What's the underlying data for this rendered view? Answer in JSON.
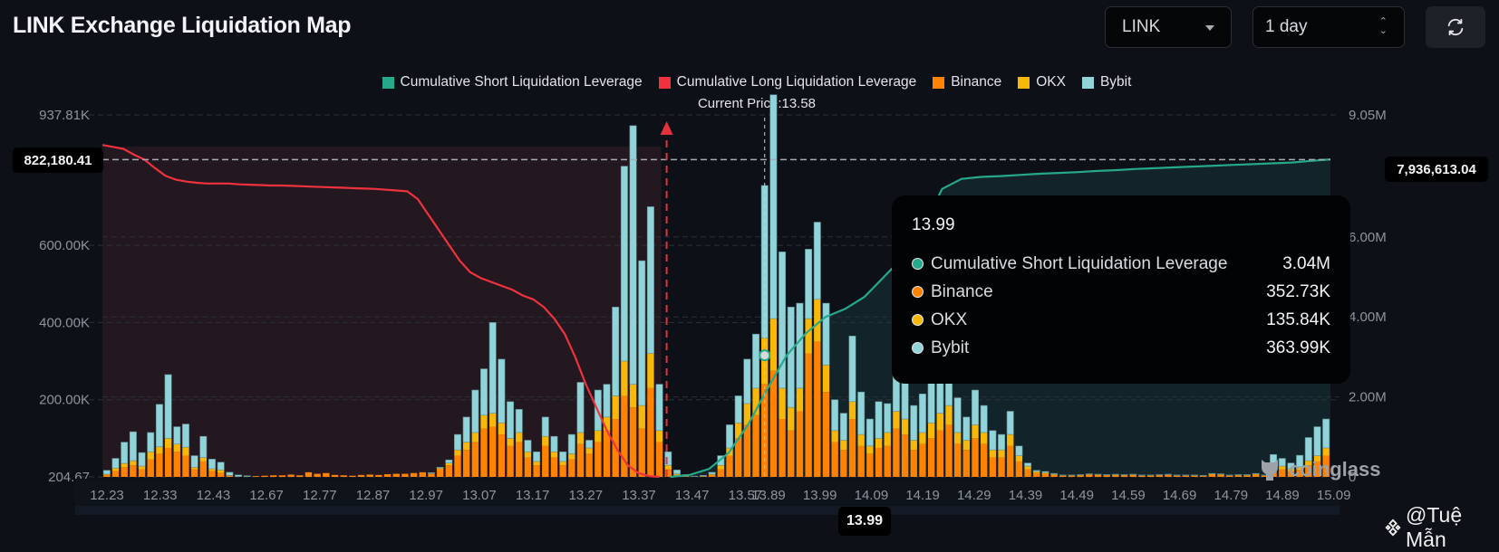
{
  "header": {
    "title": "LINK Exchange Liquidation Map",
    "symbol_select": "LINK",
    "range_select": "1 day",
    "refresh_icon": "refresh-icon"
  },
  "legend": [
    {
      "label": "Cumulative Short Liquidation Leverage",
      "color": "#26a88a"
    },
    {
      "label": "Cumulative Long Liquidation Leverage",
      "color": "#f0323f"
    },
    {
      "label": "Binance",
      "color": "#ff8200"
    },
    {
      "label": "OKX",
      "color": "#f8b80a"
    },
    {
      "label": "Bybit",
      "color": "#90d4da"
    }
  ],
  "current_price_label": "Current Price:13.58",
  "left_axis_marker": "822,180.41",
  "right_axis_marker": "7,936,613.04",
  "hover_x_label": "13.99",
  "tooltip": {
    "title": "13.99",
    "rows": [
      {
        "label": "Cumulative Short Liquidation Leverage",
        "value": "3.04M",
        "color": "#26a88a"
      },
      {
        "label": "Binance",
        "value": "352.73K",
        "color": "#ff8200"
      },
      {
        "label": "OKX",
        "value": "135.84K",
        "color": "#f8b80a"
      },
      {
        "label": "Bybit",
        "value": "363.99K",
        "color": "#90d4da"
      }
    ]
  },
  "watermark": {
    "brand": "coinglass",
    "credit": "@Tuệ Mẫn"
  },
  "chart_data": {
    "type": "bar",
    "title": "LINK Exchange Liquidation Map",
    "current_price": 13.58,
    "left_axis": {
      "ticks": [
        "204.67",
        "200.00K",
        "400.00K",
        "600.00K",
        "937.81K"
      ],
      "ylim": [
        0,
        937810
      ]
    },
    "right_axis": {
      "ticks": [
        "0",
        "2.00M",
        "4.00M",
        "6.00M",
        "9.05M"
      ],
      "ylim": [
        0,
        9050000
      ]
    },
    "x_tick_labels": [
      "12.23",
      "12.33",
      "12.43",
      "12.67",
      "12.77",
      "12.87",
      "12.97",
      "13.07",
      "13.17",
      "13.27",
      "13.37",
      "13.47",
      "13.57",
      "13.89",
      "13.99",
      "14.09",
      "14.19",
      "14.29",
      "14.39",
      "14.49",
      "14.59",
      "14.69",
      "14.79",
      "14.89",
      "15.09"
    ],
    "bars": {
      "binance": [
        5,
        15,
        25,
        30,
        20,
        45,
        60,
        75,
        65,
        55,
        20,
        40,
        15,
        10,
        3,
        1,
        1,
        2,
        3,
        4,
        4,
        6,
        4,
        12,
        8,
        10,
        5,
        4,
        3,
        5,
        6,
        5,
        7,
        8,
        8,
        10,
        12,
        8,
        20,
        30,
        55,
        70,
        90,
        125,
        130,
        110,
        80,
        90,
        50,
        30,
        80,
        50,
        30,
        45,
        85,
        60,
        90,
        120,
        150,
        210,
        180,
        125,
        230,
        90,
        20,
        5,
        2,
        1,
        2,
        5,
        20,
        55,
        100,
        135,
        160,
        240,
        275,
        150,
        120,
        170,
        320,
        350,
        220,
        90,
        70,
        150,
        80,
        60,
        75,
        80,
        125,
        110,
        70,
        85,
        100,
        120,
        135,
        85,
        70,
        100,
        85,
        50,
        50,
        80,
        40,
        20,
        10,
        8,
        5,
        3,
        3,
        4,
        6,
        5,
        4,
        5,
        4,
        5,
        3,
        3,
        4,
        5,
        3,
        3,
        3,
        2,
        6,
        5,
        3,
        4,
        4,
        6,
        3,
        25,
        20,
        15,
        18,
        30,
        40,
        55
      ],
      "okx": [
        2,
        8,
        10,
        12,
        8,
        20,
        18,
        25,
        20,
        22,
        5,
        10,
        6,
        8,
        1,
        0,
        0,
        0,
        0,
        0,
        0,
        0,
        0,
        0,
        0,
        0,
        0,
        0,
        0,
        0,
        0,
        0,
        0,
        0,
        0,
        0,
        0,
        1,
        3,
        6,
        15,
        20,
        25,
        35,
        35,
        30,
        20,
        25,
        15,
        10,
        25,
        15,
        10,
        15,
        30,
        15,
        30,
        35,
        60,
        90,
        60,
        60,
        90,
        30,
        10,
        3,
        0,
        0,
        0,
        2,
        10,
        20,
        40,
        55,
        70,
        120,
        135,
        80,
        60,
        60,
        90,
        110,
        70,
        30,
        25,
        45,
        30,
        20,
        25,
        35,
        45,
        40,
        25,
        30,
        40,
        45,
        50,
        30,
        25,
        35,
        30,
        20,
        20,
        30,
        15,
        8,
        4,
        3,
        2,
        1,
        1,
        1,
        1,
        1,
        1,
        1,
        1,
        1,
        1,
        1,
        1,
        1,
        1,
        1,
        1,
        1,
        2,
        2,
        1,
        1,
        1,
        2,
        1,
        8,
        8,
        6,
        8,
        12,
        15,
        20
      ],
      "bybit": [
        10,
        25,
        55,
        75,
        35,
        50,
        110,
        165,
        45,
        60,
        30,
        55,
        25,
        20,
        8,
        4,
        2,
        0,
        0,
        0,
        0,
        0,
        0,
        0,
        0,
        0,
        0,
        0,
        0,
        0,
        0,
        0,
        0,
        0,
        0,
        0,
        0,
        2,
        2,
        8,
        40,
        65,
        110,
        120,
        235,
        165,
        95,
        60,
        30,
        25,
        50,
        40,
        25,
        50,
        130,
        20,
        105,
        85,
        230,
        505,
        670,
        375,
        380,
        120,
        35,
        10,
        4,
        1,
        2,
        5,
        25,
        60,
        70,
        115,
        140,
        395,
        580,
        353,
        260,
        220,
        180,
        200,
        160,
        80,
        70,
        170,
        110,
        70,
        95,
        75,
        130,
        150,
        90,
        100,
        130,
        140,
        150,
        90,
        60,
        90,
        70,
        50,
        40,
        60,
        25,
        8,
        3,
        3,
        2,
        1,
        1,
        1,
        1,
        1,
        1,
        1,
        1,
        1,
        1,
        1,
        1,
        1,
        1,
        1,
        1,
        1,
        1,
        1,
        1,
        1,
        1,
        1,
        1,
        25,
        20,
        15,
        30,
        60,
        75,
        75
      ]
    },
    "series": [
      {
        "name": "Cumulative Long Liquidation Leverage",
        "axis": "left",
        "x_range": [
          12.23,
          13.57
        ],
        "values_k": [
          860,
          855,
          850,
          835,
          822,
          800,
          780,
          770,
          765,
          762,
          760,
          760,
          760,
          758,
          757,
          756,
          755,
          755,
          754,
          753,
          752,
          751,
          750,
          749,
          748,
          747,
          746,
          744,
          742,
          740,
          720,
          680,
          640,
          600,
          560,
          530,
          515,
          505,
          495,
          485,
          470,
          460,
          440,
          410,
          370,
          310,
          240,
          180,
          120,
          70,
          30,
          10,
          2,
          0
        ]
      },
      {
        "name": "Cumulative Short Liquidation Leverage",
        "axis": "right",
        "x_range": [
          13.58,
          15.09
        ],
        "values_m": [
          0,
          0.05,
          0.2,
          0.6,
          1.3,
          2.2,
          3.04,
          3.6,
          4.0,
          4.2,
          4.5,
          5.0,
          5.5,
          6.2,
          7.2,
          7.45,
          7.5,
          7.52,
          7.55,
          7.58,
          7.6,
          7.62,
          7.65,
          7.67,
          7.7,
          7.72,
          7.74,
          7.76,
          7.78,
          7.8,
          7.82,
          7.84,
          7.86,
          7.9,
          7.94
        ]
      }
    ],
    "markers": {
      "current_price_line": 13.58,
      "hover_price": 13.99,
      "long_max_label": 822180.41,
      "short_max_label": 7936613.04
    },
    "grid": true,
    "legend_position": "top-center"
  }
}
